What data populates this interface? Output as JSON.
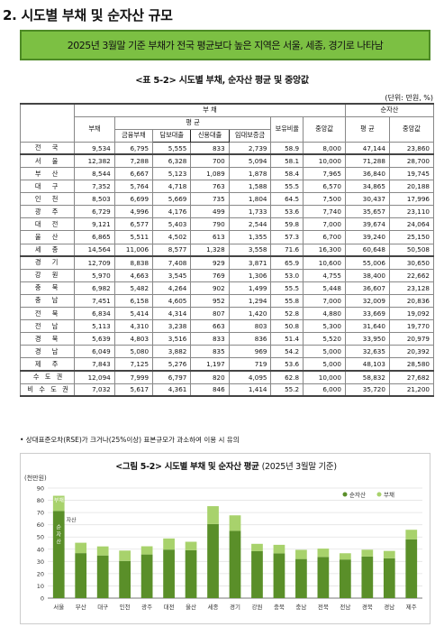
{
  "section_title": "2. 시도별 부채 및 순자산 규모",
  "highlight": "2025년 3월말 기준 부채가 전국 평균보다 높은 지역은 서울, 세종, 경기로 나타남",
  "table": {
    "caption": "<표 5-2> 시도별 부채, 순자산 평균 및 중앙값",
    "unit": "(단위: 만원, %)",
    "headers": {
      "debt": "부 채",
      "net_assets": "순자산",
      "debt_col": "부채",
      "avg": "평 균",
      "financial_debt": "금융부채",
      "secured_loan": "담보대출",
      "credit_loan": "신용대출",
      "deposit": "임대보증금",
      "holding_ratio": "보유비율",
      "median": "중앙값",
      "net_avg": "평 균",
      "net_median": "중앙값"
    },
    "rows": [
      {
        "region": "전 국",
        "debt": "9,534",
        "fin": "6,795",
        "secured": "5,555",
        "credit": "833",
        "deposit": "2,739",
        "ratio": "58.9",
        "median": "8,000",
        "net_avg": "47,144",
        "net_median": "23,860"
      },
      {
        "region": "서 울",
        "debt": "12,382",
        "fin": "7,288",
        "secured": "6,328",
        "credit": "700",
        "deposit": "5,094",
        "ratio": "58.1",
        "median": "10,000",
        "net_avg": "71,288",
        "net_median": "28,700"
      },
      {
        "region": "부 산",
        "debt": "8,544",
        "fin": "6,667",
        "secured": "5,123",
        "credit": "1,089",
        "deposit": "1,878",
        "ratio": "58.4",
        "median": "7,965",
        "net_avg": "36,840",
        "net_median": "19,745"
      },
      {
        "region": "대 구",
        "debt": "7,352",
        "fin": "5,764",
        "secured": "4,718",
        "credit": "763",
        "deposit": "1,588",
        "ratio": "55.5",
        "median": "6,570",
        "net_avg": "34,865",
        "net_median": "20,188"
      },
      {
        "region": "인 천",
        "debt": "8,503",
        "fin": "6,699",
        "secured": "5,669",
        "credit": "735",
        "deposit": "1,804",
        "ratio": "64.5",
        "median": "7,500",
        "net_avg": "30,437",
        "net_median": "17,996"
      },
      {
        "region": "광 주",
        "debt": "6,729",
        "fin": "4,996",
        "secured": "4,176",
        "credit": "499",
        "deposit": "1,733",
        "ratio": "53.6",
        "median": "7,740",
        "net_avg": "35,657",
        "net_median": "23,110"
      },
      {
        "region": "대 전",
        "debt": "9,121",
        "fin": "6,577",
        "secured": "5,403",
        "credit": "790",
        "deposit": "2,544",
        "ratio": "59.8",
        "median": "7,000",
        "net_avg": "39,674",
        "net_median": "24,064"
      },
      {
        "region": "울 산",
        "debt": "6,865",
        "fin": "5,511",
        "secured": "4,502",
        "credit": "613",
        "deposit": "1,355",
        "ratio": "57.3",
        "median": "6,700",
        "net_avg": "39,240",
        "net_median": "25,150"
      },
      {
        "region": "세 종",
        "debt": "14,564",
        "fin": "11,006",
        "secured": "8,577",
        "credit": "1,328",
        "deposit": "3,558",
        "ratio": "71.6",
        "median": "16,300",
        "net_avg": "60,648",
        "net_median": "50,508"
      },
      {
        "region": "경 기",
        "debt": "12,709",
        "fin": "8,838",
        "secured": "7,408",
        "credit": "929",
        "deposit": "3,871",
        "ratio": "65.9",
        "median": "10,600",
        "net_avg": "55,006",
        "net_median": "30,650"
      },
      {
        "region": "강 원",
        "debt": "5,970",
        "fin": "4,663",
        "secured": "3,545",
        "credit": "769",
        "deposit": "1,306",
        "ratio": "53.0",
        "median": "4,755",
        "net_avg": "38,400",
        "net_median": "22,662"
      },
      {
        "region": "충 북",
        "debt": "6,982",
        "fin": "5,482",
        "secured": "4,264",
        "credit": "902",
        "deposit": "1,499",
        "ratio": "55.5",
        "median": "5,448",
        "net_avg": "36,607",
        "net_median": "23,128"
      },
      {
        "region": "충 남",
        "debt": "7,451",
        "fin": "6,158",
        "secured": "4,605",
        "credit": "952",
        "deposit": "1,294",
        "ratio": "55.8",
        "median": "7,000",
        "net_avg": "32,009",
        "net_median": "20,836"
      },
      {
        "region": "전 북",
        "debt": "6,834",
        "fin": "5,414",
        "secured": "4,314",
        "credit": "807",
        "deposit": "1,420",
        "ratio": "52.8",
        "median": "4,880",
        "net_avg": "33,669",
        "net_median": "19,092"
      },
      {
        "region": "전 남",
        "debt": "5,113",
        "fin": "4,310",
        "secured": "3,238",
        "credit": "663",
        "deposit": "803",
        "ratio": "50.8",
        "median": "5,300",
        "net_avg": "31,640",
        "net_median": "19,770"
      },
      {
        "region": "경 북",
        "debt": "5,639",
        "fin": "4,803",
        "secured": "3,516",
        "credit": "833",
        "deposit": "836",
        "ratio": "51.4",
        "median": "5,520",
        "net_avg": "33,950",
        "net_median": "20,979"
      },
      {
        "region": "경 남",
        "debt": "6,049",
        "fin": "5,080",
        "secured": "3,882",
        "credit": "835",
        "deposit": "969",
        "ratio": "54.2",
        "median": "5,000",
        "net_avg": "32,635",
        "net_median": "20,392"
      },
      {
        "region": "제 주",
        "debt": "7,843",
        "fin": "7,125",
        "secured": "5,276",
        "credit": "1,197",
        "deposit": "719",
        "ratio": "53.6",
        "median": "5,000",
        "net_avg": "48,103",
        "net_median": "28,580"
      },
      {
        "region": "수 도 권",
        "debt": "12,094",
        "fin": "7,999",
        "secured": "6,797",
        "credit": "820",
        "deposit": "4,095",
        "ratio": "62.8",
        "median": "10,000",
        "net_avg": "58,832",
        "net_median": "27,682"
      },
      {
        "region": "비 수 도 권",
        "debt": "7,032",
        "fin": "5,617",
        "secured": "4,361",
        "credit": "846",
        "deposit": "1,414",
        "ratio": "55.2",
        "median": "6,000",
        "net_avg": "35,720",
        "net_median": "21,200"
      }
    ]
  },
  "footnote": "• 상대표준오차(RSE)가 크거나(25%이상) 표본규모가 과소하여 이용 시 유의",
  "chart_data": {
    "type": "bar",
    "title": "<그림 5-2> 시도별 부채 및 순자산 평균",
    "subtitle": "(2025년 3월말 기준)",
    "ylabel": "(천만원)",
    "ylim": [
      0,
      90
    ],
    "yticks": [
      0,
      10,
      20,
      30,
      40,
      50,
      60,
      70,
      80,
      90
    ],
    "categories": [
      "서울",
      "부산",
      "대구",
      "인천",
      "광주",
      "대전",
      "울산",
      "세종",
      "경기",
      "강원",
      "충북",
      "충남",
      "전북",
      "전남",
      "경북",
      "경남",
      "제주"
    ],
    "series": [
      {
        "name": "순자산",
        "values": [
          71.3,
          36.8,
          34.9,
          30.4,
          35.7,
          39.7,
          39.2,
          60.6,
          55.0,
          38.4,
          36.6,
          32.0,
          33.7,
          31.6,
          34.0,
          32.6,
          48.1
        ]
      },
      {
        "name": "부채",
        "values": [
          12.4,
          8.5,
          7.4,
          8.5,
          6.7,
          9.1,
          6.9,
          14.6,
          12.7,
          6.0,
          7.0,
          7.5,
          6.8,
          5.1,
          5.6,
          6.0,
          7.8
        ]
      }
    ],
    "annotations": {
      "debt": "부채",
      "asset": "자산",
      "net": "순자산"
    },
    "legend": "top-right",
    "colors": {
      "net": "#5a8f29",
      "debt": "#a8d26c"
    }
  }
}
